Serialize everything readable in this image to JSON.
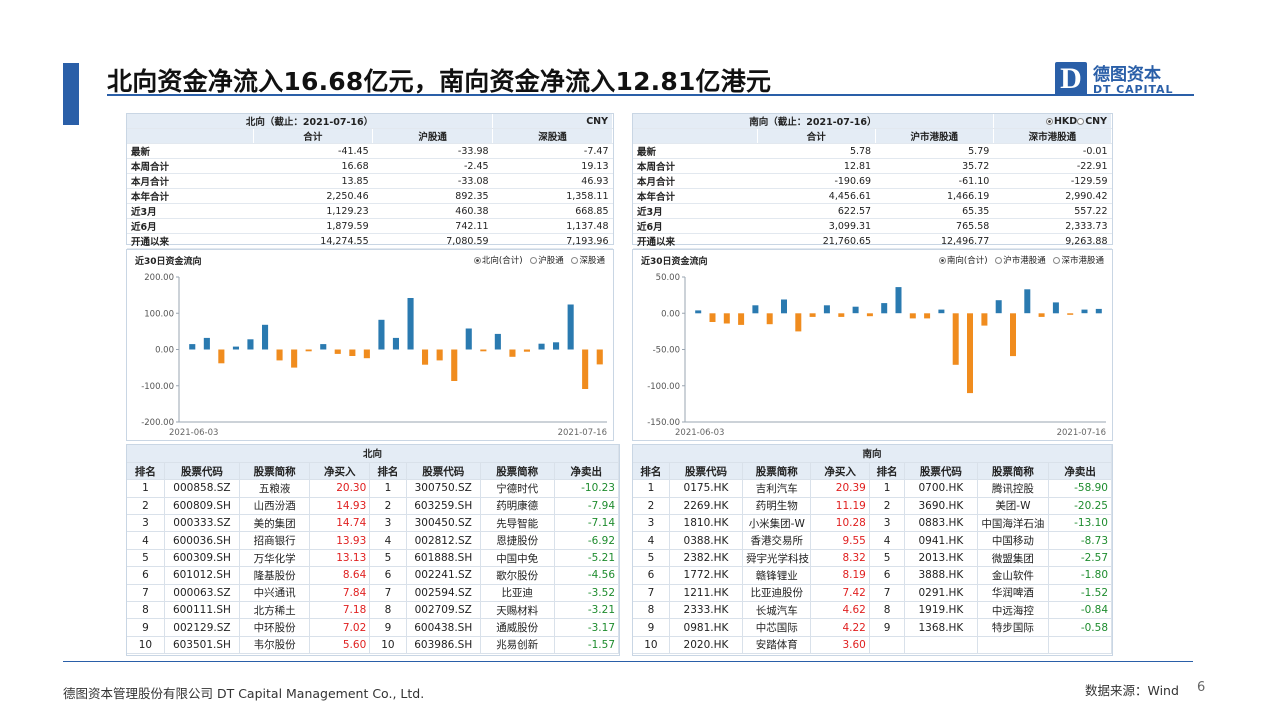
{
  "title": "北向资金净流入16.68亿元，南向资金净流入12.81亿港元",
  "logo": {
    "mark": "D",
    "cn": "德图资本",
    "en": "DT CAPITAL"
  },
  "north_summary": {
    "caption": "北向（截止：2021-07-16）",
    "currency": "CNY",
    "columns": [
      "合计",
      "沪股通",
      "深股通"
    ],
    "rows": [
      {
        "label": "最新",
        "values": [
          "-41.45",
          "-33.98",
          "-7.47"
        ]
      },
      {
        "label": "本周合计",
        "values": [
          "16.68",
          "-2.45",
          "19.13"
        ]
      },
      {
        "label": "本月合计",
        "values": [
          "13.85",
          "-33.08",
          "46.93"
        ]
      },
      {
        "label": "本年合计",
        "values": [
          "2,250.46",
          "892.35",
          "1,358.11"
        ]
      },
      {
        "label": "近3月",
        "values": [
          "1,129.23",
          "460.38",
          "668.85"
        ]
      },
      {
        "label": "近6月",
        "values": [
          "1,879.59",
          "742.11",
          "1,137.48"
        ]
      },
      {
        "label": "开通以来",
        "values": [
          "14,274.55",
          "7,080.59",
          "7,193.96"
        ]
      }
    ]
  },
  "south_summary": {
    "caption": "南向（截止：2021-07-16）",
    "currency_options": [
      "HKD",
      "CNY"
    ],
    "columns": [
      "合计",
      "沪市港股通",
      "深市港股通"
    ],
    "rows": [
      {
        "label": "最新",
        "values": [
          "5.78",
          "5.79",
          "-0.01"
        ]
      },
      {
        "label": "本周合计",
        "values": [
          "12.81",
          "35.72",
          "-22.91"
        ]
      },
      {
        "label": "本月合计",
        "values": [
          "-190.69",
          "-61.10",
          "-129.59"
        ]
      },
      {
        "label": "本年合计",
        "values": [
          "4,456.61",
          "1,466.19",
          "2,990.42"
        ]
      },
      {
        "label": "近3月",
        "values": [
          "622.57",
          "65.35",
          "557.22"
        ]
      },
      {
        "label": "近6月",
        "values": [
          "3,099.31",
          "765.58",
          "2,333.73"
        ]
      },
      {
        "label": "开通以来",
        "values": [
          "21,760.65",
          "12,496.77",
          "9,263.88"
        ]
      }
    ]
  },
  "north_chart": {
    "legend": [
      "北向(合计)",
      "沪股通",
      "深股通"
    ]
  },
  "south_chart": {
    "legend": [
      "南向(合计)",
      "沪市港股通",
      "深市港股通"
    ]
  },
  "chart_data": [
    {
      "type": "bar",
      "title": "近30日资金流向",
      "x_start_label": "2021-06-03",
      "x_end_label": "2021-07-16",
      "ylim": [
        -200,
        200
      ],
      "yticks": [
        "200.00",
        "100.00",
        "0.00",
        "-100.00",
        "-200.00"
      ],
      "ytick_values": [
        200,
        100,
        0,
        -100,
        -200
      ],
      "grid": false,
      "legend_placement": "top-right",
      "positive_color": "#2a7ab0",
      "negative_color": "#f08c1e",
      "values": [
        15,
        32,
        -38,
        8,
        28,
        68,
        -30,
        -50,
        -5,
        15,
        -12,
        -18,
        -24,
        82,
        32,
        142,
        -42,
        -30,
        -87,
        58,
        -5,
        43,
        -20,
        -6,
        16,
        20,
        124,
        -109,
        -41
      ]
    },
    {
      "type": "bar",
      "title": "近30日资金流向",
      "x_start_label": "2021-06-03",
      "x_end_label": "2021-07-16",
      "ylim": [
        -150,
        50
      ],
      "yticks": [
        "50.00",
        "0.00",
        "-50.00",
        "-100.00",
        "-150.00"
      ],
      "ytick_values": [
        50,
        0,
        -50,
        -100,
        -150
      ],
      "grid": false,
      "legend_placement": "top-right",
      "positive_color": "#2a7ab0",
      "negative_color": "#f08c1e",
      "values": [
        4,
        -12,
        -14,
        -16,
        11,
        -15,
        19,
        -25,
        -5,
        11,
        -5,
        9,
        -4,
        14,
        36,
        -7,
        -7,
        5,
        -71,
        -110,
        -17,
        18,
        -59,
        33,
        -5,
        15,
        -2,
        5,
        6
      ]
    }
  ],
  "north_rank": {
    "group": "北向",
    "headers": [
      "排名",
      "股票代码",
      "股票简称",
      "净买入",
      "排名",
      "股票代码",
      "股票简称",
      "净卖出"
    ],
    "rows": [
      [
        "1",
        "000858.SZ",
        "五粮液",
        "20.30",
        "1",
        "300750.SZ",
        "宁德时代",
        "-10.23"
      ],
      [
        "2",
        "600809.SH",
        "山西汾酒",
        "14.93",
        "2",
        "603259.SH",
        "药明康德",
        "-7.94"
      ],
      [
        "3",
        "000333.SZ",
        "美的集团",
        "14.74",
        "3",
        "300450.SZ",
        "先导智能",
        "-7.14"
      ],
      [
        "4",
        "600036.SH",
        "招商银行",
        "13.93",
        "4",
        "002812.SZ",
        "恩捷股份",
        "-6.92"
      ],
      [
        "5",
        "600309.SH",
        "万华化学",
        "13.13",
        "5",
        "601888.SH",
        "中国中免",
        "-5.21"
      ],
      [
        "6",
        "601012.SH",
        "隆基股份",
        "8.64",
        "6",
        "002241.SZ",
        "歌尔股份",
        "-4.56"
      ],
      [
        "7",
        "000063.SZ",
        "中兴通讯",
        "7.84",
        "7",
        "002594.SZ",
        "比亚迪",
        "-3.52"
      ],
      [
        "8",
        "600111.SH",
        "北方稀土",
        "7.18",
        "8",
        "002709.SZ",
        "天赐材料",
        "-3.21"
      ],
      [
        "9",
        "002129.SZ",
        "中环股份",
        "7.02",
        "9",
        "600438.SH",
        "通威股份",
        "-3.17"
      ],
      [
        "10",
        "603501.SH",
        "韦尔股份",
        "5.60",
        "10",
        "603986.SH",
        "兆易创新",
        "-1.57"
      ]
    ]
  },
  "south_rank": {
    "group": "南向",
    "headers": [
      "排名",
      "股票代码",
      "股票简称",
      "净买入",
      "排名",
      "股票代码",
      "股票简称",
      "净卖出"
    ],
    "rows": [
      [
        "1",
        "0175.HK",
        "吉利汽车",
        "20.39",
        "1",
        "0700.HK",
        "腾讯控股",
        "-58.90"
      ],
      [
        "2",
        "2269.HK",
        "药明生物",
        "11.19",
        "2",
        "3690.HK",
        "美团-W",
        "-20.25"
      ],
      [
        "3",
        "1810.HK",
        "小米集团-W",
        "10.28",
        "3",
        "0883.HK",
        "中国海洋石油",
        "-13.10"
      ],
      [
        "4",
        "0388.HK",
        "香港交易所",
        "9.55",
        "4",
        "0941.HK",
        "中国移动",
        "-8.73"
      ],
      [
        "5",
        "2382.HK",
        "舜宇光学科技",
        "8.32",
        "5",
        "2013.HK",
        "微盟集团",
        "-2.57"
      ],
      [
        "6",
        "1772.HK",
        "赣锋锂业",
        "8.19",
        "6",
        "3888.HK",
        "金山软件",
        "-1.80"
      ],
      [
        "7",
        "1211.HK",
        "比亚迪股份",
        "7.42",
        "7",
        "0291.HK",
        "华润啤酒",
        "-1.52"
      ],
      [
        "8",
        "2333.HK",
        "长城汽车",
        "4.62",
        "8",
        "1919.HK",
        "中远海控",
        "-0.84"
      ],
      [
        "9",
        "0981.HK",
        "中芯国际",
        "4.22",
        "9",
        "1368.HK",
        "特步国际",
        "-0.58"
      ],
      [
        "10",
        "2020.HK",
        "安踏体育",
        "3.60",
        "",
        "",
        "",
        ""
      ]
    ]
  },
  "footer": {
    "company": "德图资本管理股份有限公司  DT Capital Management  Co., Ltd.",
    "source": "数据来源：Wind",
    "page": "6"
  }
}
